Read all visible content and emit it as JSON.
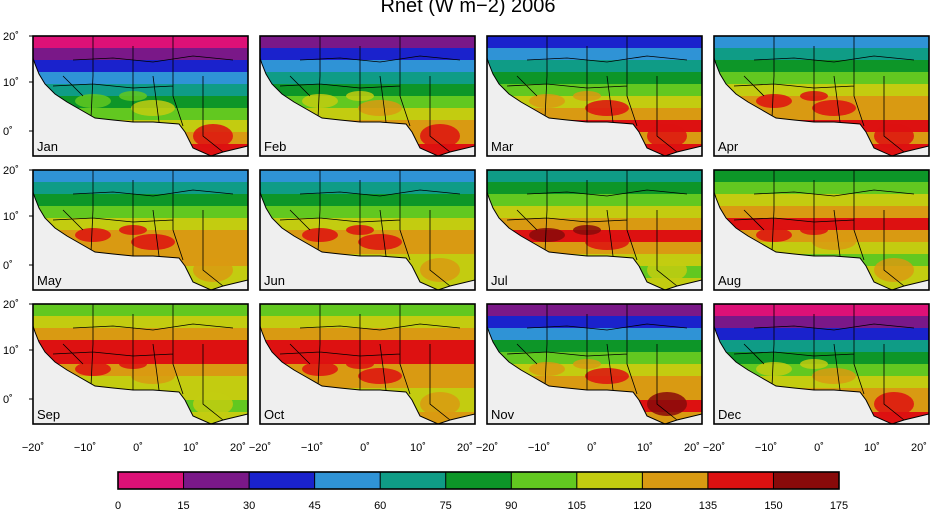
{
  "title": "Rnet (W m−2) 2006",
  "months": [
    "Jan",
    "Feb",
    "Mar",
    "Apr",
    "May",
    "Jun",
    "Jul",
    "Aug",
    "Sep",
    "Oct",
    "Nov",
    "Dec"
  ],
  "lat_ticks": [
    "20˚",
    "10˚",
    "0˚"
  ],
  "lon_ticks": [
    "−20˚",
    "−10˚",
    "0˚",
    "10˚",
    "20˚"
  ],
  "legend": {
    "ticks": [
      "0",
      "15",
      "30",
      "45",
      "60",
      "75",
      "90",
      "105",
      "120",
      "135",
      "150",
      "175"
    ],
    "colors": [
      "#dd1177",
      "#7a1888",
      "#1a22cc",
      "#2f93d6",
      "#0f9c86",
      "#0d9628",
      "#62c820",
      "#c3cc10",
      "#d99a12",
      "#dd1111",
      "#880a0a"
    ]
  }
}
